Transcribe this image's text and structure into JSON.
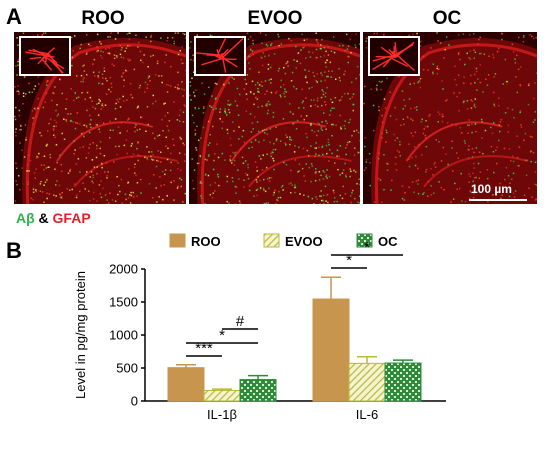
{
  "panel_a": {
    "label": "A",
    "images": [
      {
        "title": "ROO"
      },
      {
        "title": "EVOO"
      },
      {
        "title": "OC"
      }
    ],
    "scale_bar": "100 µm",
    "stain_legend": {
      "ab": "Aβ",
      "amp": " & ",
      "gfap": "GFAP"
    }
  },
  "panel_b": {
    "label": "B"
  },
  "colors": {
    "roo": "#c8954f",
    "evoo_hatch": "#c8c84a",
    "oc_checker": "#2f8a3a",
    "gfap_red": "#e5202a",
    "abeta_green": "#2fb34a"
  },
  "chart_data": {
    "type": "bar",
    "ylabel": "Level in pg/mg protein",
    "ylim": [
      0,
      2000
    ],
    "yticks": [
      "0",
      "500",
      "1000",
      "1500",
      "2000"
    ],
    "categories": [
      "IL-1β",
      "IL-6"
    ],
    "series": [
      {
        "name": "ROO",
        "values": [
          505,
          1545
        ],
        "errors": [
          45,
          330
        ],
        "pattern": "solid"
      },
      {
        "name": "EVOO",
        "values": [
          160,
          570
        ],
        "errors": [
          20,
          100
        ],
        "pattern": "hatch"
      },
      {
        "name": "OC",
        "values": [
          325,
          575
        ],
        "errors": [
          60,
          45
        ],
        "pattern": "checker"
      }
    ],
    "significance": [
      {
        "category": 0,
        "from": 0,
        "to": 1,
        "label": "***"
      },
      {
        "category": 0,
        "from": 0,
        "to": 2,
        "label": "*"
      },
      {
        "category": 0,
        "from": 1,
        "to": 2,
        "label": "#"
      },
      {
        "category": 1,
        "from": 0,
        "to": 1,
        "label": "*"
      },
      {
        "category": 1,
        "from": 0,
        "to": 2,
        "label": "*"
      }
    ]
  }
}
